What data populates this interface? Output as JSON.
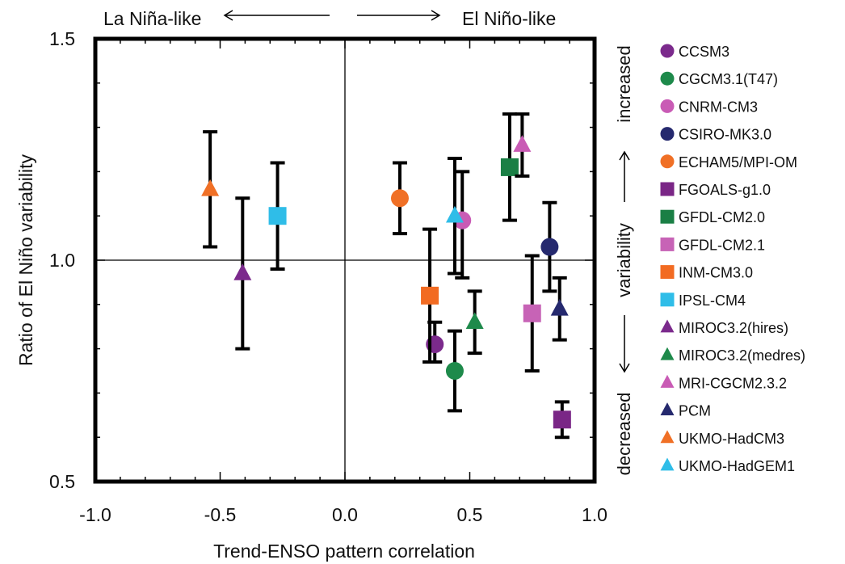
{
  "chart_data": {
    "type": "scatter",
    "xlabel": "Trend-ENSO pattern correlation",
    "ylabel": "Ratio of El Niño variability",
    "xlim": [
      -1.0,
      1.0
    ],
    "ylim": [
      0.5,
      1.5
    ],
    "x_ticks": [
      "-1.0",
      "-0.5",
      "0.0",
      "0.5",
      "1.0"
    ],
    "y_ticks": [
      "0.5",
      "1.0",
      "1.5"
    ],
    "grid": false,
    "legend_position": "right",
    "top_annotations": {
      "left": "La Niña-like",
      "right": "El Niño-like"
    },
    "right_annotation": {
      "bottom": "decreased",
      "middle": "variability",
      "top": "increased"
    },
    "series": [
      {
        "name": "CCSM3",
        "marker": "circle",
        "color": "#7b2a8c",
        "x": 0.36,
        "y": 0.81,
        "y_low": 0.77,
        "y_high": 0.86
      },
      {
        "name": "CGCM3.1(T47)",
        "marker": "circle",
        "color": "#1e8a4b",
        "x": 0.44,
        "y": 0.75,
        "y_low": 0.66,
        "y_high": 0.84
      },
      {
        "name": "CNRM-CM3",
        "marker": "circle",
        "color": "#c95bb5",
        "x": 0.47,
        "y": 1.09,
        "y_low": 0.96,
        "y_high": 1.2
      },
      {
        "name": "CSIRO-MK3.0",
        "marker": "circle",
        "color": "#25296e",
        "x": 0.82,
        "y": 1.03,
        "y_low": 0.93,
        "y_high": 1.13
      },
      {
        "name": "ECHAM5/MPI-OM",
        "marker": "circle",
        "color": "#f07026",
        "x": 0.22,
        "y": 1.14,
        "y_low": 1.06,
        "y_high": 1.22
      },
      {
        "name": "FGOALS-g1.0",
        "marker": "square",
        "color": "#7a2686",
        "x": 0.87,
        "y": 0.64,
        "y_low": 0.6,
        "y_high": 0.68
      },
      {
        "name": "GFDL-CM2.0",
        "marker": "square",
        "color": "#1a7f45",
        "x": 0.66,
        "y": 1.21,
        "y_low": 1.09,
        "y_high": 1.33
      },
      {
        "name": "GFDL-CM2.1",
        "marker": "square",
        "color": "#c763b6",
        "x": 0.75,
        "y": 0.88,
        "y_low": 0.75,
        "y_high": 1.01
      },
      {
        "name": "INM-CM3.0",
        "marker": "square",
        "color": "#f26b22",
        "x": 0.34,
        "y": 0.92,
        "y_low": 0.77,
        "y_high": 1.07
      },
      {
        "name": "IPSL-CM4",
        "marker": "square",
        "color": "#2fbde8",
        "x": -0.27,
        "y": 1.1,
        "y_low": 0.98,
        "y_high": 1.22
      },
      {
        "name": "MIROC3.2(hires)",
        "marker": "triangle",
        "color": "#7b2a8c",
        "x": -0.41,
        "y": 0.97,
        "y_low": 0.8,
        "y_high": 1.14
      },
      {
        "name": "MIROC3.2(medres)",
        "marker": "triangle",
        "color": "#1e8a4b",
        "x": 0.52,
        "y": 0.86,
        "y_low": 0.79,
        "y_high": 0.93
      },
      {
        "name": "MRI-CGCM2.3.2",
        "marker": "triangle",
        "color": "#c95bb5",
        "x": 0.71,
        "y": 1.26,
        "y_low": 1.19,
        "y_high": 1.33
      },
      {
        "name": "PCM",
        "marker": "triangle",
        "color": "#25296e",
        "x": 0.86,
        "y": 0.89,
        "y_low": 0.82,
        "y_high": 0.96
      },
      {
        "name": "UKMO-HadCM3",
        "marker": "triangle",
        "color": "#f07026",
        "x": -0.54,
        "y": 1.16,
        "y_low": 1.03,
        "y_high": 1.29
      },
      {
        "name": "UKMO-HadGEM1",
        "marker": "triangle",
        "color": "#2fbde8",
        "x": 0.44,
        "y": 1.1,
        "y_low": 0.97,
        "y_high": 1.23
      }
    ]
  }
}
